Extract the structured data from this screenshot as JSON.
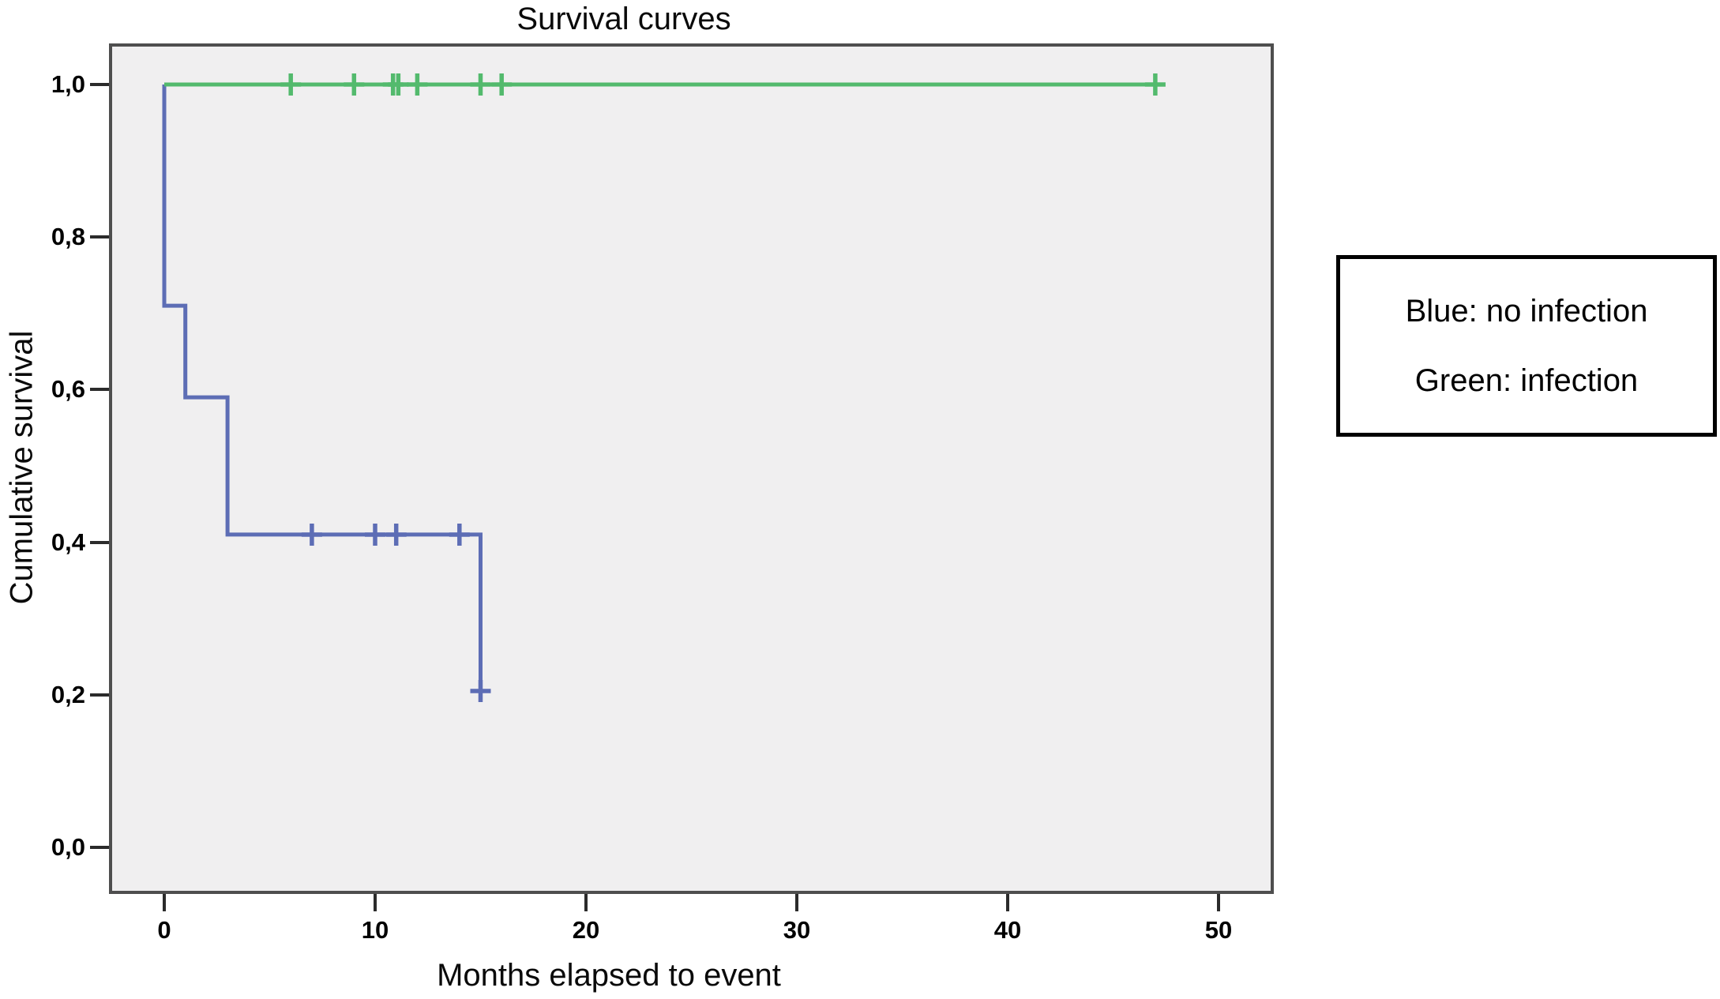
{
  "title": "Survival curves",
  "axes": {
    "y_label": "Cumulative survival",
    "x_label": "Months elapsed to event",
    "y_ticks": [
      {
        "label": "1,0",
        "value": 1.0
      },
      {
        "label": "0,8",
        "value": 0.8
      },
      {
        "label": "0,6",
        "value": 0.6
      },
      {
        "label": "0,4",
        "value": 0.4
      },
      {
        "label": "0,2",
        "value": 0.2
      },
      {
        "label": "0,0",
        "value": 0.0
      }
    ],
    "x_ticks": [
      {
        "label": "0",
        "value": 0
      },
      {
        "label": "10",
        "value": 10
      },
      {
        "label": "20",
        "value": 20
      },
      {
        "label": "30",
        "value": 30
      },
      {
        "label": "40",
        "value": 40
      },
      {
        "label": "50",
        "value": 50
      }
    ]
  },
  "legend": {
    "lines": [
      "Blue: no infection",
      "Green: infection"
    ]
  },
  "colors": {
    "blue": "#5d6db5",
    "green": "#53ba6d",
    "plot_bg": "#f0eff0",
    "plot_border": "#4e4e4e"
  },
  "chart_data": {
    "type": "line",
    "subtype": "kaplan-meier-step",
    "title": "Survival curves",
    "xlabel": "Months elapsed to event",
    "ylabel": "Cumulative survival",
    "xlim": [
      -2.6,
      52.7
    ],
    "ylim": [
      -0.06,
      1.06
    ],
    "grid": false,
    "legend_position": "right-outside",
    "series": [
      {
        "name": "no infection",
        "color_key": "blue",
        "steps": [
          [
            0,
            1.0
          ],
          [
            0,
            0.71
          ],
          [
            1,
            0.71
          ],
          [
            1,
            0.59
          ],
          [
            3,
            0.59
          ],
          [
            3,
            0.41
          ],
          [
            15,
            0.41
          ],
          [
            15,
            0.205
          ]
        ],
        "censor_points": [
          [
            7,
            0.41
          ],
          [
            10,
            0.41
          ],
          [
            11,
            0.41
          ],
          [
            14,
            0.41
          ],
          [
            15,
            0.205
          ]
        ]
      },
      {
        "name": "infection",
        "color_key": "green",
        "steps": [
          [
            0,
            1.0
          ],
          [
            47,
            1.0
          ]
        ],
        "censor_points": [
          [
            6,
            1.0
          ],
          [
            9,
            1.0
          ],
          [
            10.85,
            1.0
          ],
          [
            11.1,
            1.0
          ],
          [
            12,
            1.0
          ],
          [
            15,
            1.0
          ],
          [
            16,
            1.0
          ],
          [
            47,
            1.0
          ]
        ]
      }
    ]
  }
}
